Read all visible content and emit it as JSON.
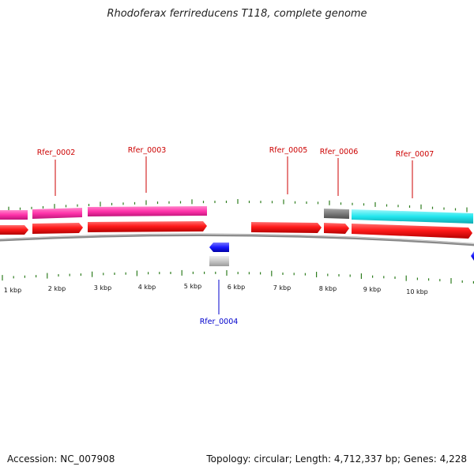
{
  "title": "Rhodoferax ferrireducens T118, complete genome",
  "footer": {
    "accession": "Accession: NC_007908",
    "topology": "Topology: circular; Length: 4,712,337 bp; Genes: 4,228"
  },
  "colors": {
    "backbone": "#8a8a8a",
    "tick": "#2e7d1f",
    "cds": "#ff1a1a",
    "gene_magenta": "#ff33aa",
    "gene_cyan": "#22e6ee",
    "gene_gray": "#7a7a7a",
    "gene_blue": "#1a1aff",
    "gene_lightgray": "#c8c8c8",
    "label_red": "#cc0000",
    "label_blue": "#0000cc"
  },
  "scale": {
    "unit": "kbp",
    "labels": [
      "1 kbp",
      "2 kbp",
      "3 kbp",
      "4 kbp",
      "5 kbp",
      "6 kbp",
      "7 kbp",
      "8 kbp",
      "9 kbp",
      "10 kbp"
    ]
  },
  "gene_labels": [
    {
      "text": "Rfer_0002",
      "color": "red"
    },
    {
      "text": "Rfer_0003",
      "color": "red"
    },
    {
      "text": "Rfer_0005",
      "color": "red"
    },
    {
      "text": "Rfer_0006",
      "color": "red"
    },
    {
      "text": "Rfer_0007",
      "color": "red"
    },
    {
      "text": "Rfer_0004",
      "color": "blue"
    }
  ]
}
